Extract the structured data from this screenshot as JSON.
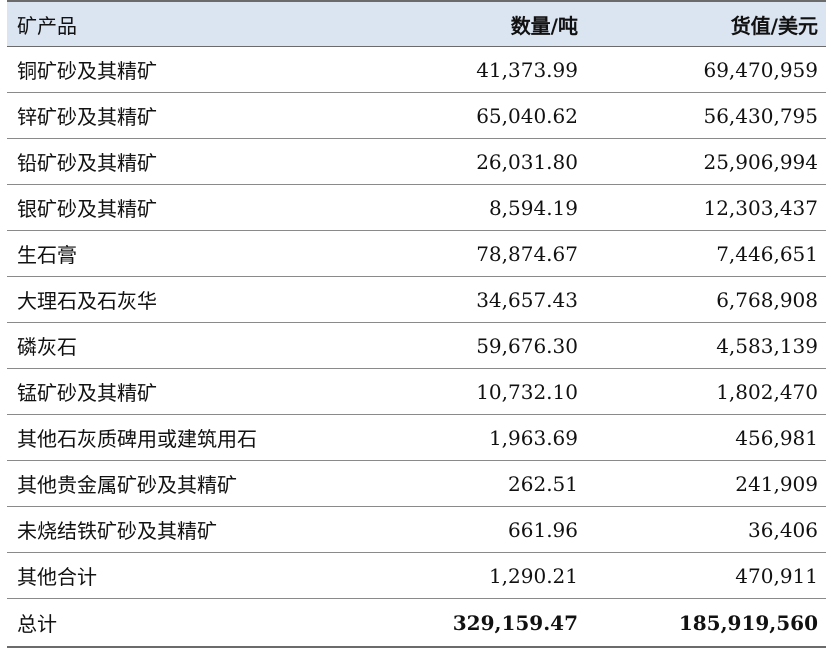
{
  "header": {
    "col_name": "矿产品",
    "col_qty": "数量/吨",
    "col_value": "货值/美元"
  },
  "rows": [
    {
      "name": "铜矿砂及其精矿",
      "qty": "41,373.99",
      "value": "69,470,959"
    },
    {
      "name": "锌矿砂及其精矿",
      "qty": "65,040.62",
      "value": "56,430,795"
    },
    {
      "name": "铅矿砂及其精矿",
      "qty": "26,031.80",
      "value": "25,906,994"
    },
    {
      "name": "银矿砂及其精矿",
      "qty": "8,594.19",
      "value": "12,303,437"
    },
    {
      "name": "生石膏",
      "qty": "78,874.67",
      "value": "7,446,651"
    },
    {
      "name": "大理石及石灰华",
      "qty": "34,657.43",
      "value": "6,768,908"
    },
    {
      "name": "磷灰石",
      "qty": "59,676.30",
      "value": "4,583,139"
    },
    {
      "name": "锰矿砂及其精矿",
      "qty": "10,732.10",
      "value": "1,802,470"
    },
    {
      "name": "其他石灰质碑用或建筑用石",
      "qty": "1,963.69",
      "value": "456,981"
    },
    {
      "name": "其他贵金属矿砂及其精矿",
      "qty": "262.51",
      "value": "241,909"
    },
    {
      "name": "未烧结铁矿砂及其精矿",
      "qty": "661.96",
      "value": "36,406"
    },
    {
      "name": "其他合计",
      "qty": "1,290.21",
      "value": "470,911"
    }
  ],
  "total": {
    "name": "总计",
    "qty": "329,159.47",
    "value": "185,919,560"
  },
  "colors": {
    "header_bg": "#dbe4f1",
    "rule": "#8a8a8a"
  }
}
